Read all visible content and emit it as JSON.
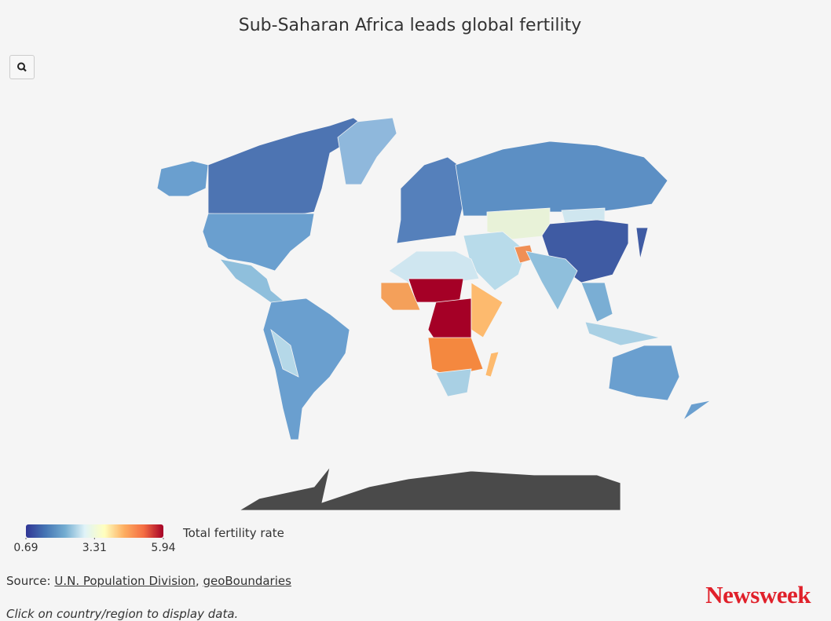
{
  "title": "Sub-Saharan Africa leads global fertility",
  "legend": {
    "title": "Total fertility rate",
    "min": 0.69,
    "max": 5.94,
    "ticks": [
      0.69,
      3.31,
      5.94
    ],
    "colors": [
      "#313695",
      "#4575b4",
      "#74add1",
      "#e0f3f8",
      "#ffffbf",
      "#fdae61",
      "#f46d43",
      "#a50026"
    ]
  },
  "source": {
    "prefix": "Source:",
    "separator": ",",
    "links": [
      "U.N. Population Division",
      "geoBoundaries"
    ]
  },
  "note": "Click on country/region to display data.",
  "logo": "Newsweek"
}
